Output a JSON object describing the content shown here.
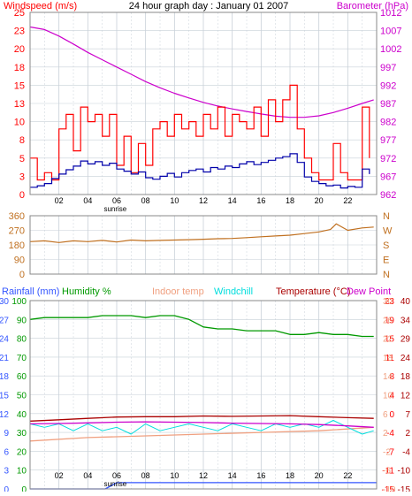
{
  "header": {
    "title": "24 hour graph day : January 01 2007",
    "left_label": "Windspeed (m/s)",
    "right_label": "Barometer (hPa)"
  },
  "colors": {
    "wind_gust": "#ff0000",
    "wind_avg": "#0000aa",
    "barometer": "#cc00cc",
    "wind_dir": "#c07020",
    "rain": "#3355ff",
    "humidity": "#009900",
    "indoor": "#f0a080",
    "windchill": "#00dddd",
    "temp": "#aa0000",
    "dewpoint": "#cc00cc",
    "grid": "#c8d0d8",
    "frame": "#888888"
  },
  "x_ticks": [
    "02",
    "04",
    "06",
    "08",
    "10",
    "12",
    "14",
    "16",
    "18",
    "20",
    "22"
  ],
  "sunrise_label": "sunrise",
  "chart_data": [
    {
      "type": "line",
      "panel": "wind",
      "xlabel": "",
      "ylabel": "Windspeed (m/s)",
      "y2label": "Barometer (hPa)",
      "y_ticks": [
        "0",
        "3",
        "5",
        "8",
        "10",
        "13",
        "15",
        "18",
        "20",
        "23",
        "25"
      ],
      "y_values": [
        0,
        2.5,
        5,
        7.5,
        10,
        12.5,
        15,
        17.5,
        20,
        22.5,
        25
      ],
      "ylim": [
        0,
        25
      ],
      "y2_ticks": [
        "962",
        "967",
        "972",
        "977",
        "982",
        "987",
        "992",
        "997",
        "1002",
        "1007",
        "1012"
      ],
      "y2lim": [
        962,
        1012
      ],
      "xlim": [
        0,
        24
      ],
      "series": [
        {
          "name": "Barometer (hPa)",
          "axis": "right",
          "x": [
            0,
            1,
            2,
            3,
            4,
            5,
            6,
            7,
            8,
            9,
            10,
            11,
            12,
            13,
            14,
            15,
            16,
            17,
            18,
            19,
            20,
            21,
            22,
            23,
            23.8
          ],
          "y": [
            1008,
            1007.3,
            1005.5,
            1003.3,
            1001,
            999,
            997,
            995,
            993,
            991.3,
            989.8,
            988.5,
            987.3,
            986.3,
            985.5,
            984.8,
            984.1,
            983.5,
            983.2,
            983.2,
            983.6,
            984.5,
            985.7,
            987,
            988
          ]
        },
        {
          "name": "Wind gust (m/s)",
          "axis": "left",
          "x": [
            0,
            0.5,
            1,
            1.5,
            2,
            2.5,
            3,
            3.5,
            4,
            4.5,
            5,
            5.5,
            6,
            6.5,
            7,
            7.5,
            8,
            8.5,
            9,
            9.5,
            10,
            10.5,
            11,
            11.5,
            12,
            12.5,
            13,
            13.5,
            14,
            14.5,
            15,
            15.5,
            16,
            16.5,
            17,
            17.5,
            18,
            18.5,
            19,
            19.5,
            20,
            20.5,
            21,
            21.5,
            22,
            22.5,
            23,
            23.5
          ],
          "y": [
            5,
            2,
            3,
            2,
            9,
            11,
            6,
            12,
            10,
            11,
            8,
            11,
            4,
            8,
            3,
            7,
            4,
            9,
            10,
            8,
            11,
            9,
            10,
            8,
            11,
            9,
            12,
            8,
            11,
            10,
            9,
            12,
            8,
            13,
            10,
            13,
            15,
            9,
            5,
            3,
            2,
            2,
            7,
            3,
            2,
            2,
            12,
            5
          ]
        },
        {
          "name": "Wind average (m/s)",
          "axis": "left",
          "x": [
            0,
            0.5,
            1,
            1.5,
            2,
            2.5,
            3,
            3.5,
            4,
            4.5,
            5,
            5.5,
            6,
            6.5,
            7,
            7.5,
            8,
            8.5,
            9,
            9.5,
            10,
            10.5,
            11,
            11.5,
            12,
            12.5,
            13,
            13.5,
            14,
            14.5,
            15,
            15.5,
            16,
            16.5,
            17,
            17.5,
            18,
            18.5,
            19,
            19.5,
            20,
            20.5,
            21,
            21.5,
            22,
            22.5,
            23,
            23.5
          ],
          "y": [
            1,
            1.2,
            1.5,
            2.2,
            2.8,
            3.4,
            3.9,
            4.6,
            4.2,
            4.5,
            4,
            4.3,
            3.5,
            3.2,
            2.8,
            3.1,
            2.3,
            2.1,
            2.5,
            2.9,
            2.4,
            3,
            3.3,
            3.5,
            3.1,
            3.7,
            3.5,
            3.9,
            3.7,
            4.2,
            4.5,
            4.1,
            4.4,
            4.7,
            5,
            5.2,
            5.6,
            4.4,
            2.4,
            1.8,
            1.5,
            1.2,
            1.3,
            0.9,
            1.1,
            1,
            3.5,
            2.8
          ]
        }
      ]
    },
    {
      "type": "line",
      "panel": "direction",
      "xlabel": "",
      "ylabel": "",
      "y_ticks": [
        "360",
        "270",
        "180",
        "90",
        "0"
      ],
      "y_values": [
        360,
        270,
        180,
        90,
        0
      ],
      "ylim": [
        0,
        360
      ],
      "right_ticks": [
        "N",
        "W",
        "S",
        "E",
        "N"
      ],
      "xlim": [
        0,
        24
      ],
      "series": [
        {
          "name": "Wind direction",
          "x": [
            0,
            1,
            2,
            3,
            4,
            5,
            6,
            7,
            8,
            9,
            10,
            11,
            12,
            13,
            14,
            15,
            16,
            17,
            18,
            19,
            20,
            20.8,
            21.2,
            22,
            23,
            23.8
          ],
          "y": [
            200,
            205,
            195,
            205,
            200,
            208,
            198,
            210,
            205,
            208,
            210,
            212,
            215,
            218,
            220,
            225,
            230,
            235,
            240,
            250,
            260,
            275,
            310,
            270,
            285,
            290
          ]
        }
      ]
    },
    {
      "type": "line",
      "panel": "weather",
      "xlabel": "",
      "ylabel": "",
      "legend": [
        "Rainfall (mm)",
        "Humidity %",
        "Indoor temp",
        "Windchill",
        "Temperature (°C)",
        "Dew Point"
      ],
      "xlim": [
        0,
        24
      ],
      "rain_ticks": [
        "0",
        "3",
        "6",
        "9",
        "12",
        "15",
        "18",
        "21",
        "24",
        "27",
        "30"
      ],
      "rain_values": [
        0,
        3,
        6,
        9,
        12,
        15,
        18,
        21,
        24,
        27,
        30
      ],
      "rain_lim": [
        0,
        30
      ],
      "humidity_ticks": [
        "0",
        "10",
        "20",
        "30",
        "40",
        "50",
        "60",
        "70",
        "80",
        "90",
        "100"
      ],
      "humidity_values": [
        0,
        10,
        20,
        30,
        40,
        50,
        60,
        70,
        80,
        90,
        100
      ],
      "humidity_lim": [
        0,
        100
      ],
      "temp_ticks_outer": [
        "-15",
        "-11",
        "-7",
        "-4",
        "0",
        "4",
        "8",
        "11",
        "15",
        "19",
        "23"
      ],
      "temp_ticks_inner": [
        "-10",
        "-6",
        "-2",
        "2",
        "6",
        "10",
        "14",
        "18",
        "22",
        "26",
        "30"
      ],
      "temp_ticks_right": [
        "-15",
        "-10",
        "-4",
        "2",
        "7",
        "12",
        "18",
        "24",
        "29",
        "34",
        "40"
      ],
      "temp_values": [
        -15,
        -9.5,
        -4,
        1.5,
        7,
        12.5,
        18,
        23.5,
        29,
        34.5,
        40
      ],
      "temp_lim": [
        -15,
        40
      ],
      "series": [
        {
          "name": "Rainfall (mm)",
          "axis": "rain",
          "x": [
            0,
            5.2,
            5.6,
            6,
            24
          ],
          "y": [
            0,
            0,
            0.5,
            1,
            1
          ]
        },
        {
          "name": "Humidity %",
          "axis": "humidity",
          "x": [
            0,
            1,
            2,
            3,
            4,
            5,
            6,
            7,
            8,
            9,
            10,
            11,
            12,
            13,
            14,
            15,
            16,
            17,
            18,
            19,
            20,
            21,
            22,
            23,
            23.8
          ],
          "y": [
            90,
            91,
            91,
            91,
            91,
            92,
            92,
            92,
            91,
            92,
            92,
            90,
            86,
            85,
            85,
            84,
            84,
            84,
            82,
            82,
            83,
            82,
            82,
            81,
            81
          ]
        },
        {
          "name": "Indoor temp",
          "axis": "temp",
          "x": [
            0,
            4,
            8,
            12,
            16,
            20,
            23.8
          ],
          "y": [
            -1,
            0,
            0.5,
            1,
            1.5,
            2,
            3
          ]
        },
        {
          "name": "Windchill",
          "axis": "temp",
          "x": [
            0,
            1,
            2,
            3,
            4,
            5,
            6,
            7,
            8,
            9,
            10,
            11,
            12,
            13,
            14,
            15,
            16,
            17,
            18,
            19,
            20,
            21,
            22,
            23,
            23.8
          ],
          "y": [
            4,
            3,
            4,
            2,
            4,
            2,
            3,
            1,
            4,
            2,
            3,
            4,
            3,
            2,
            4,
            3,
            2,
            4,
            3,
            4,
            3,
            5,
            3,
            1,
            2
          ]
        },
        {
          "name": "Temperature (°C)",
          "axis": "temp",
          "x": [
            0,
            2,
            4,
            6,
            8,
            10,
            12,
            14,
            16,
            18,
            20,
            22,
            23.8
          ],
          "y": [
            4.8,
            5.2,
            5.6,
            6,
            6.1,
            6.1,
            6.3,
            6.2,
            6.3,
            6.4,
            6.1,
            5.8,
            5.6
          ]
        },
        {
          "name": "Dew Point",
          "axis": "temp",
          "x": [
            0,
            2,
            4,
            6,
            8,
            10,
            12,
            14,
            16,
            18,
            20,
            22,
            23.8
          ],
          "y": [
            4,
            4.1,
            4.3,
            4.5,
            4.6,
            4.5,
            4.4,
            4.2,
            4.1,
            4,
            3.8,
            3.4,
            3
          ]
        }
      ]
    }
  ]
}
